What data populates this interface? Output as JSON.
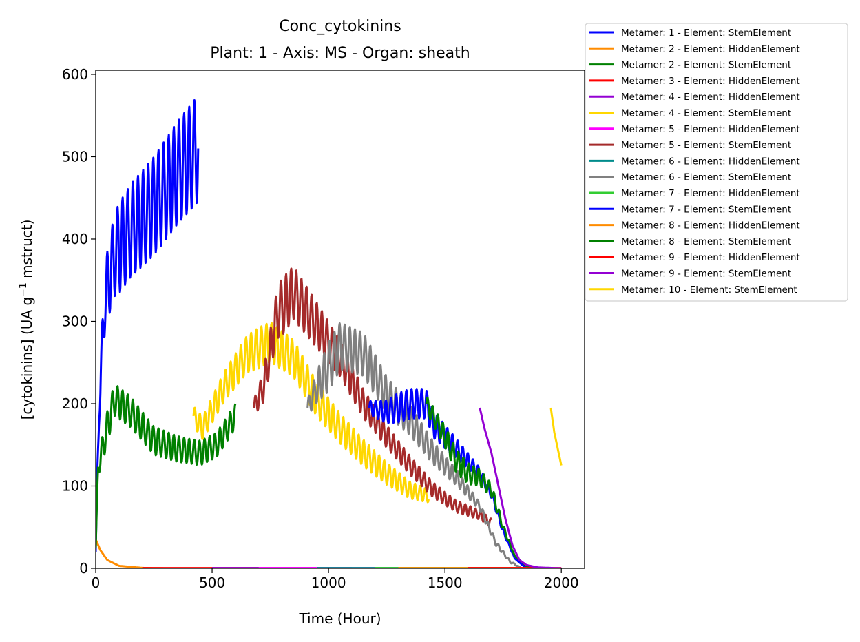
{
  "chart_data": {
    "type": "line",
    "title": "Conc_cytokinins",
    "subtitle": "Plant: 1 - Axis: MS - Organ: sheath",
    "xlabel": "Time (Hour)",
    "ylabel_main": "[cytokinins] (UA g",
    "ylabel_sup": "−1",
    "ylabel_tail": " mstruct)",
    "xlim": [
      0,
      2100
    ],
    "ylim": [
      0,
      605
    ],
    "xticks": [
      0,
      500,
      1000,
      1500,
      2000
    ],
    "yticks": [
      0,
      100,
      200,
      300,
      400,
      500,
      600
    ],
    "grid": false,
    "legend_position": "outside top-right",
    "series": [
      {
        "name": "Metamer: 1 - Element: StemElement",
        "color": "#0000ff",
        "kind": "osc",
        "start": 0,
        "end": 440,
        "period": 22,
        "points": [
          [
            0,
            20
          ],
          [
            15,
            200
          ],
          [
            40,
            330
          ],
          [
            80,
            380
          ],
          [
            150,
            410
          ],
          [
            250,
            440
          ],
          [
            350,
            480
          ],
          [
            440,
            510
          ]
        ],
        "amp": [
          [
            0,
            10
          ],
          [
            40,
            40
          ],
          [
            100,
            55
          ],
          [
            250,
            60
          ],
          [
            440,
            65
          ]
        ]
      },
      {
        "name": "Metamer: 2 - Element: HiddenElement",
        "color": "#ff8c00",
        "kind": "smooth",
        "points": [
          [
            0,
            35
          ],
          [
            20,
            22
          ],
          [
            50,
            10
          ],
          [
            100,
            3
          ],
          [
            200,
            0.5
          ],
          [
            300,
            0
          ]
        ]
      },
      {
        "name": "Metamer: 2 - Element: StemElement",
        "color": "#008000",
        "kind": "osc",
        "start": 0,
        "end": 600,
        "period": 22,
        "points": [
          [
            0,
            25
          ],
          [
            10,
            120
          ],
          [
            40,
            160
          ],
          [
            80,
            205
          ],
          [
            150,
            190
          ],
          [
            250,
            155
          ],
          [
            350,
            145
          ],
          [
            450,
            140
          ],
          [
            520,
            150
          ],
          [
            600,
            185
          ]
        ],
        "amp": [
          [
            0,
            5
          ],
          [
            40,
            20
          ],
          [
            200,
            18
          ],
          [
            400,
            15
          ],
          [
            600,
            15
          ]
        ]
      },
      {
        "name": "Metamer: 3 - Element: HiddenElement",
        "color": "#ff0000",
        "kind": "smooth",
        "points": [
          [
            200,
            0.3
          ],
          [
            700,
            0.3
          ]
        ]
      },
      {
        "name": "Metamer: 4 - Element: HiddenElement",
        "color": "#9400d3",
        "kind": "smooth",
        "points": [
          [
            500,
            0.3
          ],
          [
            1100,
            0.3
          ]
        ]
      },
      {
        "name": "Metamer: 4 - Element: StemElement",
        "color": "#ffd700",
        "kind": "osc",
        "start": 420,
        "end": 1430,
        "period": 22,
        "points": [
          [
            420,
            185
          ],
          [
            460,
            170
          ],
          [
            550,
            220
          ],
          [
            650,
            260
          ],
          [
            750,
            275
          ],
          [
            850,
            255
          ],
          [
            950,
            205
          ],
          [
            1050,
            170
          ],
          [
            1150,
            140
          ],
          [
            1250,
            115
          ],
          [
            1350,
            95
          ],
          [
            1430,
            88
          ]
        ],
        "amp": [
          [
            420,
            12
          ],
          [
            700,
            25
          ],
          [
            900,
            22
          ],
          [
            1200,
            15
          ],
          [
            1430,
            8
          ]
        ]
      },
      {
        "name": "Metamer: 5 - Element: HiddenElement",
        "color": "#ff00ff",
        "kind": "smooth",
        "points": [
          [
            700,
            0.3
          ],
          [
            1300,
            0.3
          ]
        ]
      },
      {
        "name": "Metamer: 5 - Element: StemElement",
        "color": "#a52a2a",
        "kind": "osc",
        "start": 680,
        "end": 1700,
        "period": 22,
        "points": [
          [
            680,
            195
          ],
          [
            720,
            220
          ],
          [
            780,
            310
          ],
          [
            850,
            335
          ],
          [
            950,
            295
          ],
          [
            1050,
            255
          ],
          [
            1150,
            200
          ],
          [
            1250,
            160
          ],
          [
            1350,
            125
          ],
          [
            1450,
            95
          ],
          [
            1550,
            75
          ],
          [
            1650,
            65
          ],
          [
            1700,
            55
          ]
        ],
        "amp": [
          [
            680,
            10
          ],
          [
            800,
            35
          ],
          [
            1000,
            25
          ],
          [
            1200,
            15
          ],
          [
            1500,
            8
          ],
          [
            1700,
            5
          ]
        ]
      },
      {
        "name": "Metamer: 6 - Element: HiddenElement",
        "color": "#008b8b",
        "kind": "smooth",
        "points": [
          [
            950,
            0.3
          ],
          [
            1500,
            0.3
          ]
        ]
      },
      {
        "name": "Metamer: 6 - Element: StemElement",
        "color": "#808080",
        "kind": "osc",
        "start": 910,
        "end": 1830,
        "period": 22,
        "points": [
          [
            910,
            195
          ],
          [
            950,
            220
          ],
          [
            1050,
            270
          ],
          [
            1150,
            260
          ],
          [
            1250,
            210
          ],
          [
            1350,
            180
          ],
          [
            1450,
            140
          ],
          [
            1550,
            110
          ],
          [
            1650,
            75
          ],
          [
            1720,
            30
          ],
          [
            1780,
            8
          ],
          [
            1830,
            0
          ]
        ],
        "amp": [
          [
            910,
            10
          ],
          [
            1000,
            30
          ],
          [
            1200,
            25
          ],
          [
            1500,
            12
          ],
          [
            1650,
            5
          ],
          [
            1830,
            0
          ]
        ]
      },
      {
        "name": "Metamer: 7 - Element: HiddenElement",
        "color": "#32cd32",
        "kind": "smooth",
        "points": [
          [
            1200,
            0.3
          ],
          [
            1800,
            0.3
          ]
        ]
      },
      {
        "name": "Metamer: 7 - Element: StemElement",
        "color": "#0000ff",
        "kind": "osc",
        "start": 1175,
        "end": 1850,
        "period": 22,
        "points": [
          [
            1175,
            195
          ],
          [
            1250,
            190
          ],
          [
            1350,
            200
          ],
          [
            1420,
            200
          ],
          [
            1450,
            175
          ],
          [
            1550,
            145
          ],
          [
            1650,
            115
          ],
          [
            1700,
            90
          ],
          [
            1750,
            45
          ],
          [
            1800,
            12
          ],
          [
            1850,
            0
          ]
        ],
        "amp": [
          [
            1175,
            8
          ],
          [
            1300,
            18
          ],
          [
            1420,
            18
          ],
          [
            1550,
            12
          ],
          [
            1700,
            5
          ],
          [
            1800,
            0
          ]
        ]
      },
      {
        "name": "Metamer: 8 - Element: HiddenElement",
        "color": "#ff8c00",
        "kind": "smooth",
        "points": [
          [
            1300,
            0.3
          ],
          [
            1900,
            0.3
          ]
        ]
      },
      {
        "name": "Metamer: 8 - Element: StemElement",
        "color": "#008000",
        "kind": "osc",
        "start": 1420,
        "end": 1880,
        "period": 22,
        "points": [
          [
            1420,
            200
          ],
          [
            1500,
            160
          ],
          [
            1550,
            130
          ],
          [
            1600,
            115
          ],
          [
            1650,
            110
          ],
          [
            1700,
            95
          ],
          [
            1750,
            50
          ],
          [
            1800,
            15
          ],
          [
            1850,
            3
          ],
          [
            1880,
            0
          ]
        ],
        "amp": [
          [
            1420,
            10
          ],
          [
            1550,
            15
          ],
          [
            1700,
            8
          ],
          [
            1800,
            0
          ]
        ]
      },
      {
        "name": "Metamer: 9 - Element: HiddenElement",
        "color": "#ff0000",
        "kind": "smooth",
        "points": [
          [
            1600,
            0.3
          ],
          [
            2000,
            0.3
          ]
        ]
      },
      {
        "name": "Metamer: 9 - Element: StemElement",
        "color": "#9400d3",
        "kind": "smooth",
        "points": [
          [
            1650,
            195
          ],
          [
            1670,
            170
          ],
          [
            1700,
            140
          ],
          [
            1730,
            100
          ],
          [
            1760,
            60
          ],
          [
            1790,
            28
          ],
          [
            1820,
            10
          ],
          [
            1850,
            4
          ],
          [
            1900,
            1
          ],
          [
            2000,
            0
          ]
        ]
      },
      {
        "name": "Metamer: 10 - Element: StemElement",
        "color": "#ffd700",
        "kind": "smooth",
        "points": [
          [
            1955,
            195
          ],
          [
            1970,
            165
          ],
          [
            1985,
            145
          ],
          [
            2000,
            125
          ]
        ]
      }
    ]
  }
}
